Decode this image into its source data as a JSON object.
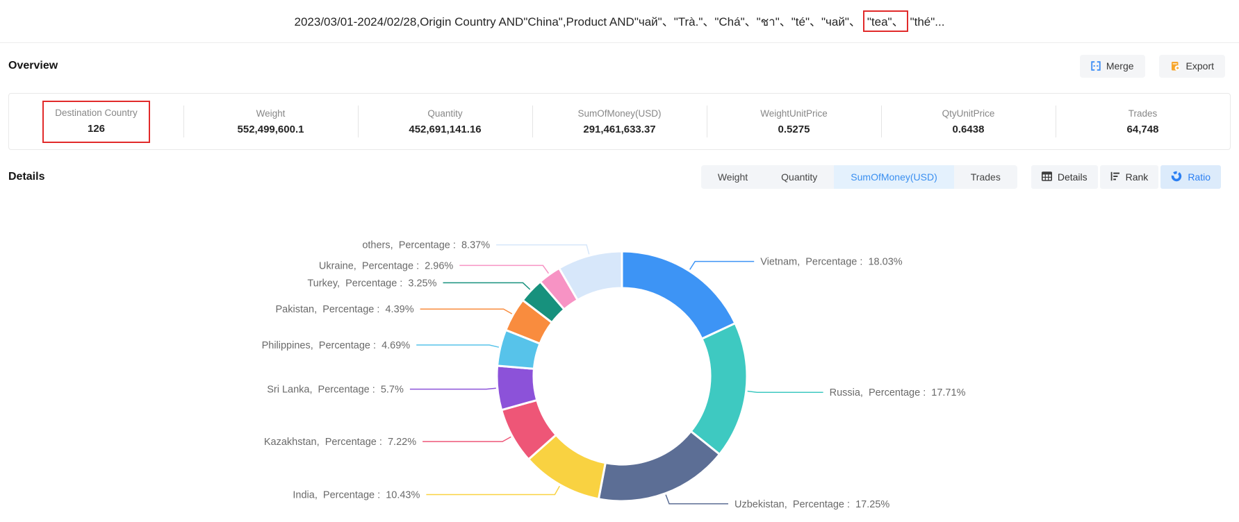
{
  "title": {
    "before": "2023/03/01-2024/02/28,Origin Country AND\"China\",Product AND\"чай\"、\"Trà.\"、\"Chá\"、\"ชา\"、\"té\"、\"чай\"、",
    "highlighted": "\"tea\"、",
    "after": "\"thé\"..."
  },
  "overview": {
    "heading": "Overview",
    "merge_label": "Merge",
    "export_label": "Export",
    "stats": [
      {
        "label": "Destination Country",
        "value": "126",
        "highlighted": true
      },
      {
        "label": "Weight",
        "value": "552,499,600.1"
      },
      {
        "label": "Quantity",
        "value": "452,691,141.16"
      },
      {
        "label": "SumOfMoney(USD)",
        "value": "291,461,633.37"
      },
      {
        "label": "WeightUnitPrice",
        "value": "0.5275"
      },
      {
        "label": "QtyUnitPrice",
        "value": "0.6438"
      },
      {
        "label": "Trades",
        "value": "64,748"
      }
    ]
  },
  "details": {
    "heading": "Details",
    "metric_tabs": [
      {
        "label": "Weight",
        "active": false
      },
      {
        "label": "Quantity",
        "active": false
      },
      {
        "label": "SumOfMoney(USD)",
        "active": true
      },
      {
        "label": "Trades",
        "active": false
      }
    ],
    "view_tabs": [
      {
        "label": "Details",
        "icon": "table-icon",
        "active": false
      },
      {
        "label": "Rank",
        "icon": "rank-bars-icon",
        "active": false
      },
      {
        "label": "Ratio",
        "icon": "donut-chart-icon",
        "active": true
      }
    ]
  },
  "chart_data": {
    "type": "pie",
    "donut": true,
    "start_angle_deg": 0,
    "clockwise": true,
    "label_word": "Percentage",
    "legend": "none",
    "series": [
      {
        "name": "Vietnam",
        "value": 18.03,
        "pct": "18.03%",
        "color": "#3d94f5"
      },
      {
        "name": "Russia",
        "value": 17.71,
        "pct": "17.71%",
        "color": "#3ec9c1"
      },
      {
        "name": "Uzbekistan",
        "value": 17.25,
        "pct": "17.25%",
        "color": "#5c6e95"
      },
      {
        "name": "India",
        "value": 10.43,
        "pct": "10.43%",
        "color": "#f9d241"
      },
      {
        "name": "Kazakhstan",
        "value": 7.22,
        "pct": "7.22%",
        "color": "#ee5677"
      },
      {
        "name": "Sri Lanka",
        "value": 5.7,
        "pct": "5.7%",
        "color": "#8c52d9"
      },
      {
        "name": "Philippines",
        "value": 4.69,
        "pct": "4.69%",
        "color": "#57c3ea"
      },
      {
        "name": "Pakistan",
        "value": 4.39,
        "pct": "4.39%",
        "color": "#f98c3e"
      },
      {
        "name": "Turkey",
        "value": 3.25,
        "pct": "3.25%",
        "color": "#17917d"
      },
      {
        "name": "Ukraine",
        "value": 2.96,
        "pct": "2.96%",
        "color": "#f793c4"
      },
      {
        "name": "others",
        "value": 8.37,
        "pct": "8.37%",
        "color": "#d7e7fa"
      }
    ]
  },
  "accent_colors": {
    "blue": "#3d8df5",
    "active_tab_bg": "#e4f1fd",
    "ratio_btn_bg": "#dcebfb",
    "export_orange": "#f7a62c",
    "red_box": "#e12a2a"
  }
}
